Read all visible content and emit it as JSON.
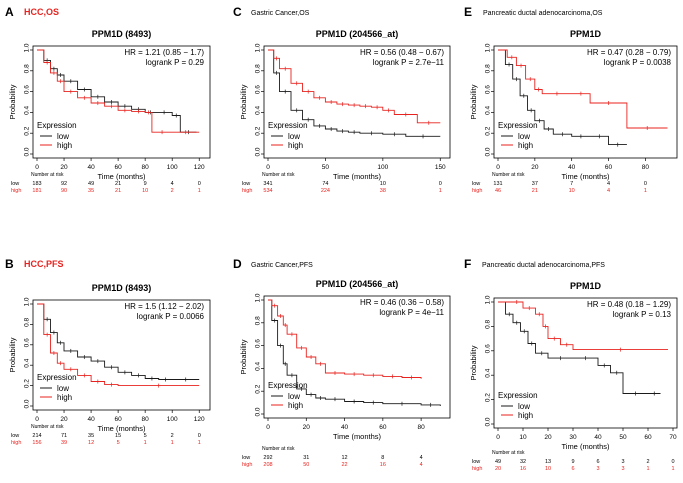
{
  "colors": {
    "low": "#1a1a1a",
    "high": "#e8231f",
    "panel_tag": "#e8231f",
    "axis": "#000000"
  },
  "common": {
    "ylabel": "Probability",
    "xlabel": "Time (months)",
    "legend_title": "Expression",
    "legend_low": "low",
    "legend_high": "high",
    "risk_title": "Number at risk",
    "risk_low_label": "low",
    "risk_high_label": "high"
  },
  "chart_data": [
    {
      "panel": "A",
      "header": "HCC,OS",
      "header_red": true,
      "title": "PPM1D (8493)",
      "type": "line",
      "hr": "HR = 1.21 (0.85 − 1.7)",
      "logrank": "logrank P = 0.29",
      "xlim": [
        0,
        125
      ],
      "ylim": [
        0,
        1
      ],
      "xticks": [
        0,
        20,
        40,
        60,
        80,
        100,
        120
      ],
      "yticks": [
        "0.0",
        "0.2",
        "0.4",
        "0.6",
        "0.8",
        "1.0"
      ],
      "series": [
        {
          "name": "low",
          "x": [
            0,
            5,
            10,
            15,
            20,
            30,
            40,
            50,
            60,
            70,
            80,
            88,
            100,
            106,
            118
          ],
          "y": [
            1,
            0.9,
            0.82,
            0.76,
            0.7,
            0.62,
            0.55,
            0.5,
            0.46,
            0.43,
            0.4,
            0.4,
            0.37,
            0.21,
            0.21
          ]
        },
        {
          "name": "high",
          "x": [
            0,
            5,
            10,
            15,
            20,
            30,
            40,
            50,
            60,
            70,
            80,
            85,
            100,
            120
          ],
          "y": [
            1,
            0.88,
            0.78,
            0.7,
            0.6,
            0.54,
            0.49,
            0.46,
            0.42,
            0.41,
            0.4,
            0.21,
            0.21,
            0.21
          ]
        }
      ],
      "risk_x": [
        0,
        20,
        40,
        60,
        80,
        100,
        120
      ],
      "risk_low": [
        "183",
        "92",
        "49",
        "21",
        "9",
        "4",
        "0"
      ],
      "risk_high": [
        "181",
        "90",
        "35",
        "21",
        "10",
        "2",
        "1"
      ]
    },
    {
      "panel": "C",
      "header": "Gastric Cancer,OS",
      "header_red": false,
      "title": "PPM1D (204566_at)",
      "type": "line",
      "hr": "HR = 0.56 (0.48 − 0.67)",
      "logrank": "logrank P = 2.7e−11",
      "xlim": [
        0,
        155
      ],
      "ylim": [
        0,
        1
      ],
      "xticks": [
        0,
        50,
        100,
        150
      ],
      "yticks": [
        "0.0",
        "0.2",
        "0.4",
        "0.6",
        "0.8",
        "1.0"
      ],
      "series": [
        {
          "name": "low",
          "x": [
            0,
            5,
            10,
            20,
            30,
            40,
            50,
            60,
            70,
            80,
            100,
            120,
            150
          ],
          "y": [
            1,
            0.78,
            0.6,
            0.42,
            0.33,
            0.27,
            0.24,
            0.22,
            0.21,
            0.2,
            0.19,
            0.17,
            0.17
          ]
        },
        {
          "name": "high",
          "x": [
            0,
            5,
            10,
            20,
            30,
            40,
            50,
            60,
            70,
            80,
            90,
            100,
            110,
            130,
            150
          ],
          "y": [
            1,
            0.92,
            0.82,
            0.68,
            0.6,
            0.54,
            0.5,
            0.48,
            0.47,
            0.46,
            0.45,
            0.42,
            0.38,
            0.3,
            0.3
          ]
        }
      ],
      "risk_x": [
        0,
        50,
        100,
        150
      ],
      "risk_low": [
        "341",
        "74",
        "10",
        "0"
      ],
      "risk_high": [
        "534",
        "224",
        "38",
        "1"
      ]
    },
    {
      "panel": "E",
      "header": "Pancreatic ductal adenocarcinoma,OS",
      "header_red": false,
      "title": "PPM1D",
      "type": "line",
      "hr": "HR = 0.47 (0.28 − 0.79)",
      "logrank": "logrank P = 0.0038",
      "xlim": [
        0,
        95
      ],
      "ylim": [
        0,
        1
      ],
      "xticks": [
        0,
        20,
        40,
        60,
        80
      ],
      "yticks": [
        "0.0",
        "0.2",
        "0.4",
        "0.6",
        "0.8",
        "1.0"
      ],
      "series": [
        {
          "name": "low",
          "x": [
            0,
            4,
            8,
            12,
            16,
            20,
            25,
            30,
            40,
            50,
            60,
            70
          ],
          "y": [
            1,
            0.86,
            0.72,
            0.56,
            0.42,
            0.32,
            0.24,
            0.19,
            0.17,
            0.17,
            0.09,
            0.09
          ]
        },
        {
          "name": "high",
          "x": [
            0,
            5,
            10,
            15,
            20,
            24,
            40,
            50,
            70,
            92
          ],
          "y": [
            1,
            0.93,
            0.85,
            0.72,
            0.62,
            0.58,
            0.58,
            0.49,
            0.25,
            0.25
          ]
        }
      ],
      "risk_x": [
        0,
        20,
        40,
        60,
        80
      ],
      "risk_low": [
        "131",
        "37",
        "7",
        "4",
        "0"
      ],
      "risk_high": [
        "46",
        "21",
        "10",
        "4",
        "1"
      ]
    },
    {
      "panel": "B",
      "header": "HCC,PFS",
      "header_red": true,
      "title": "PPM1D (8493)",
      "type": "line",
      "hr": "HR = 1.5 (1.12 − 2.02)",
      "logrank": "logrank P = 0.0066",
      "xlim": [
        0,
        125
      ],
      "ylim": [
        0,
        1
      ],
      "xticks": [
        0,
        20,
        40,
        60,
        80,
        100,
        120
      ],
      "yticks": [
        "0.0",
        "0.2",
        "0.4",
        "0.6",
        "0.8",
        "1.0"
      ],
      "series": [
        {
          "name": "low",
          "x": [
            0,
            5,
            10,
            15,
            20,
            30,
            40,
            50,
            60,
            70,
            80,
            90,
            100,
            120
          ],
          "y": [
            1,
            0.85,
            0.72,
            0.62,
            0.54,
            0.48,
            0.44,
            0.38,
            0.33,
            0.3,
            0.27,
            0.26,
            0.26,
            0.26
          ]
        },
        {
          "name": "high",
          "x": [
            0,
            5,
            10,
            15,
            20,
            30,
            40,
            50,
            60,
            120
          ],
          "y": [
            1,
            0.7,
            0.52,
            0.42,
            0.36,
            0.3,
            0.24,
            0.21,
            0.2,
            0.2
          ]
        }
      ],
      "risk_x": [
        0,
        20,
        40,
        60,
        80,
        100,
        120
      ],
      "risk_low": [
        "214",
        "71",
        "35",
        "15",
        "5",
        "2",
        "0"
      ],
      "risk_high": [
        "156",
        "39",
        "12",
        "5",
        "1",
        "1",
        "1"
      ]
    },
    {
      "panel": "D",
      "header": "Gastric Cancer,PFS",
      "header_red": false,
      "title": "PPM1D (204566_at)",
      "type": "line",
      "hr": "HR = 0.46 (0.36 − 0.58)",
      "logrank": "logrank P = 4e−11",
      "xlim": [
        0,
        93
      ],
      "ylim": [
        0,
        1
      ],
      "xticks": [
        0,
        20,
        40,
        60,
        80
      ],
      "yticks": [
        "0.0",
        "0.2",
        "0.4",
        "0.6",
        "0.8",
        "1.0"
      ],
      "series": [
        {
          "name": "low",
          "x": [
            0,
            2,
            5,
            8,
            10,
            15,
            20,
            25,
            30,
            40,
            50,
            60,
            80,
            90
          ],
          "y": [
            1,
            0.82,
            0.6,
            0.44,
            0.34,
            0.22,
            0.17,
            0.14,
            0.13,
            0.11,
            0.1,
            0.09,
            0.08,
            0.07
          ]
        },
        {
          "name": "high",
          "x": [
            0,
            2,
            5,
            8,
            10,
            15,
            20,
            25,
            30,
            40,
            50,
            60,
            70,
            80
          ],
          "y": [
            1,
            0.95,
            0.86,
            0.78,
            0.7,
            0.58,
            0.5,
            0.44,
            0.36,
            0.35,
            0.34,
            0.33,
            0.32,
            0.31
          ]
        }
      ],
      "risk_x": [
        0,
        20,
        40,
        60,
        80
      ],
      "risk_low": [
        "292",
        "31",
        "12",
        "8",
        "4"
      ],
      "risk_high": [
        "208",
        "50",
        "22",
        "16",
        "4"
      ]
    },
    {
      "panel": "F",
      "header": "Pancreatic ductal adenocarcinoma,PFS",
      "header_red": false,
      "title": "PPM1D",
      "type": "line",
      "hr": "HR = 0.48 (0.18 − 1.29)",
      "logrank": "logrank P = 0.13",
      "xlim": [
        0,
        70
      ],
      "ylim": [
        0,
        1
      ],
      "xticks": [
        0,
        10,
        20,
        30,
        40,
        50,
        60,
        70
      ],
      "yticks": [
        "0.0",
        "0.2",
        "0.4",
        "0.6",
        "0.8",
        "1.0"
      ],
      "series": [
        {
          "name": "low",
          "x": [
            0,
            3,
            6,
            9,
            12,
            15,
            20,
            30,
            40,
            45,
            50,
            60,
            65
          ],
          "y": [
            1,
            0.9,
            0.83,
            0.76,
            0.66,
            0.58,
            0.54,
            0.54,
            0.48,
            0.42,
            0.25,
            0.25,
            0.25
          ]
        },
        {
          "name": "high",
          "x": [
            0,
            5,
            10,
            15,
            18,
            20,
            25,
            30,
            68
          ],
          "y": [
            1,
            1,
            0.95,
            0.9,
            0.8,
            0.7,
            0.65,
            0.61,
            0.61
          ]
        }
      ],
      "risk_x": [
        0,
        10,
        20,
        30,
        40,
        50,
        60,
        70
      ],
      "risk_low": [
        "49",
        "32",
        "13",
        "9",
        "6",
        "3",
        "2",
        "0"
      ],
      "risk_high": [
        "20",
        "16",
        "10",
        "6",
        "3",
        "3",
        "1",
        "1"
      ]
    }
  ]
}
